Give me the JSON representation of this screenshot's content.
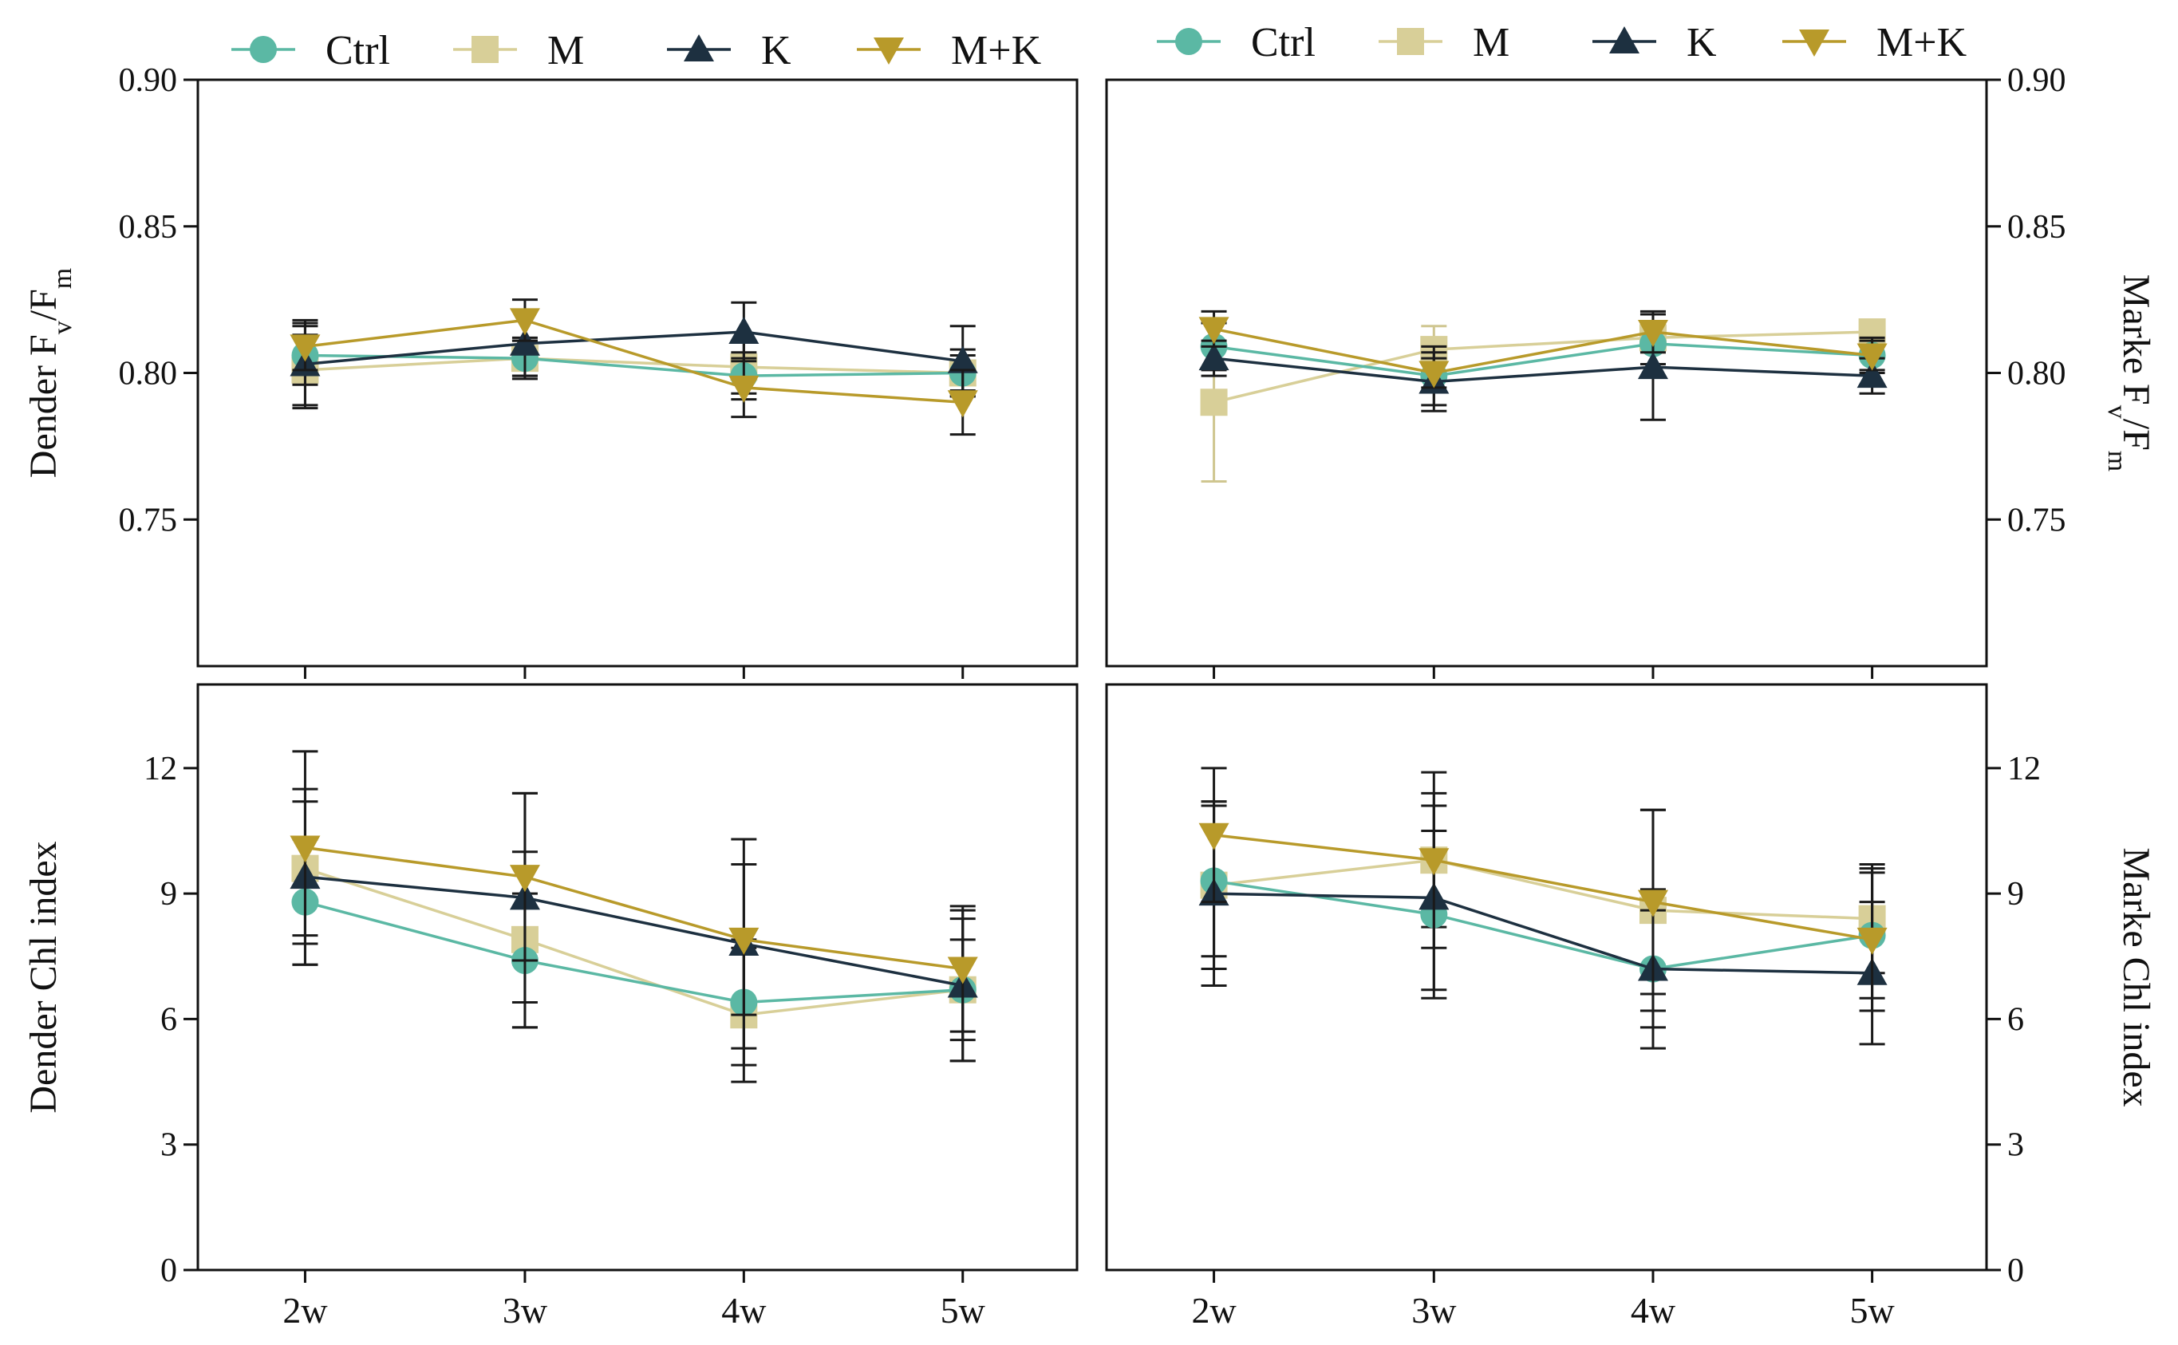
{
  "colors": {
    "Ctrl": "#5bb8a4",
    "M": "#d8cf98",
    "K": "#1d3040",
    "M+K": "#b89a2a"
  },
  "legend": [
    "Ctrl",
    "M",
    "K",
    "M+K"
  ],
  "chart_data": [
    {
      "id": "dender-fvfm",
      "type": "line",
      "ylabel": "Dender F",
      "ylabel_sub1": "v",
      "ylabel_mid": "/F",
      "ylabel_sub2": "m",
      "ylim": [
        0.7,
        0.9
      ],
      "yticks": [
        0.75,
        0.8,
        0.85,
        0.9
      ],
      "ytick_labels": [
        "0.75",
        "0.80",
        "0.85",
        "0.90"
      ],
      "categories": [
        "2w",
        "3w",
        "4w",
        "5w"
      ],
      "series": [
        {
          "name": "Ctrl",
          "values": [
            0.806,
            0.805,
            0.799,
            0.8
          ],
          "errors": [
            0.01,
            0.007,
            0.008,
            0.006
          ]
        },
        {
          "name": "M",
          "values": [
            0.801,
            0.805,
            0.802,
            0.8
          ],
          "errors": [
            0.012,
            0.006,
            0.009,
            0.008
          ]
        },
        {
          "name": "K",
          "values": [
            0.803,
            0.81,
            0.814,
            0.804
          ],
          "errors": [
            0.015,
            0.011,
            0.01,
            0.012
          ]
        },
        {
          "name": "M+K",
          "values": [
            0.809,
            0.818,
            0.795,
            0.79
          ],
          "errors": [
            0.008,
            0.007,
            0.01,
            0.011
          ]
        }
      ]
    },
    {
      "id": "marke-fvfm",
      "type": "line",
      "ylabel": "Marke F",
      "ylabel_sub1": "v",
      "ylabel_mid": "/F",
      "ylabel_sub2": "m",
      "ylim": [
        0.7,
        0.9
      ],
      "yticks": [
        0.75,
        0.8,
        0.85,
        0.9
      ],
      "ytick_labels": [
        "0.75",
        "0.80",
        "0.85",
        "0.90"
      ],
      "categories": [
        "2w",
        "3w",
        "4w",
        "5w"
      ],
      "series": [
        {
          "name": "Ctrl",
          "values": [
            0.809,
            0.799,
            0.81,
            0.806
          ],
          "errors": [
            0.008,
            0.01,
            0.007,
            0.006
          ]
        },
        {
          "name": "M",
          "values": [
            0.79,
            0.808,
            0.812,
            0.814
          ],
          "errors": [
            0.027,
            0.008,
            0.005,
            0.004
          ]
        },
        {
          "name": "K",
          "values": [
            0.805,
            0.797,
            0.802,
            0.799
          ],
          "errors": [
            0.006,
            0.01,
            0.018,
            0.006
          ]
        },
        {
          "name": "M+K",
          "values": [
            0.815,
            0.8,
            0.814,
            0.806
          ],
          "errors": [
            0.006,
            0.005,
            0.007,
            0.005
          ]
        }
      ]
    },
    {
      "id": "dender-chl",
      "type": "line",
      "ylabel": "Dender Chl index",
      "ylim": [
        0,
        14
      ],
      "yticks": [
        0,
        3,
        6,
        9,
        12
      ],
      "ytick_labels": [
        "0",
        "3",
        "6",
        "9",
        "12"
      ],
      "categories": [
        "2w",
        "3w",
        "4w",
        "5w"
      ],
      "series": [
        {
          "name": "Ctrl",
          "values": [
            8.8,
            7.4,
            6.4,
            6.7
          ],
          "errors": [
            1.5,
            1.6,
            1.5,
            1.2
          ]
        },
        {
          "name": "M",
          "values": [
            9.6,
            7.9,
            6.1,
            6.7
          ],
          "errors": [
            1.6,
            2.1,
            1.6,
            1.7
          ]
        },
        {
          "name": "K",
          "values": [
            9.4,
            8.9,
            7.8,
            6.8
          ],
          "errors": [
            2.1,
            2.5,
            2.5,
            1.8
          ]
        },
        {
          "name": "M+K",
          "values": [
            10.1,
            9.4,
            7.9,
            7.2
          ],
          "errors": [
            2.3,
            2.0,
            1.8,
            1.5
          ]
        }
      ]
    },
    {
      "id": "marke-chl",
      "type": "line",
      "ylabel": "Marke Chl index",
      "ylim": [
        0,
        14
      ],
      "yticks": [
        0,
        3,
        6,
        9,
        12
      ],
      "ytick_labels": [
        "0",
        "3",
        "6",
        "9",
        "12"
      ],
      "categories": [
        "2w",
        "3w",
        "4w",
        "5w"
      ],
      "series": [
        {
          "name": "Ctrl",
          "values": [
            9.3,
            8.5,
            7.2,
            8.0
          ],
          "errors": [
            1.8,
            2.0,
            1.9,
            1.5
          ]
        },
        {
          "name": "M",
          "values": [
            9.2,
            9.8,
            8.6,
            8.4
          ],
          "errors": [
            2.0,
            1.6,
            2.4,
            1.3
          ]
        },
        {
          "name": "K",
          "values": [
            9.0,
            8.9,
            7.2,
            7.1
          ],
          "errors": [
            2.2,
            2.2,
            1.4,
            1.7
          ]
        },
        {
          "name": "M+K",
          "values": [
            10.4,
            9.8,
            8.8,
            7.9
          ],
          "errors": [
            1.6,
            2.1,
            2.2,
            1.7
          ]
        }
      ]
    }
  ]
}
